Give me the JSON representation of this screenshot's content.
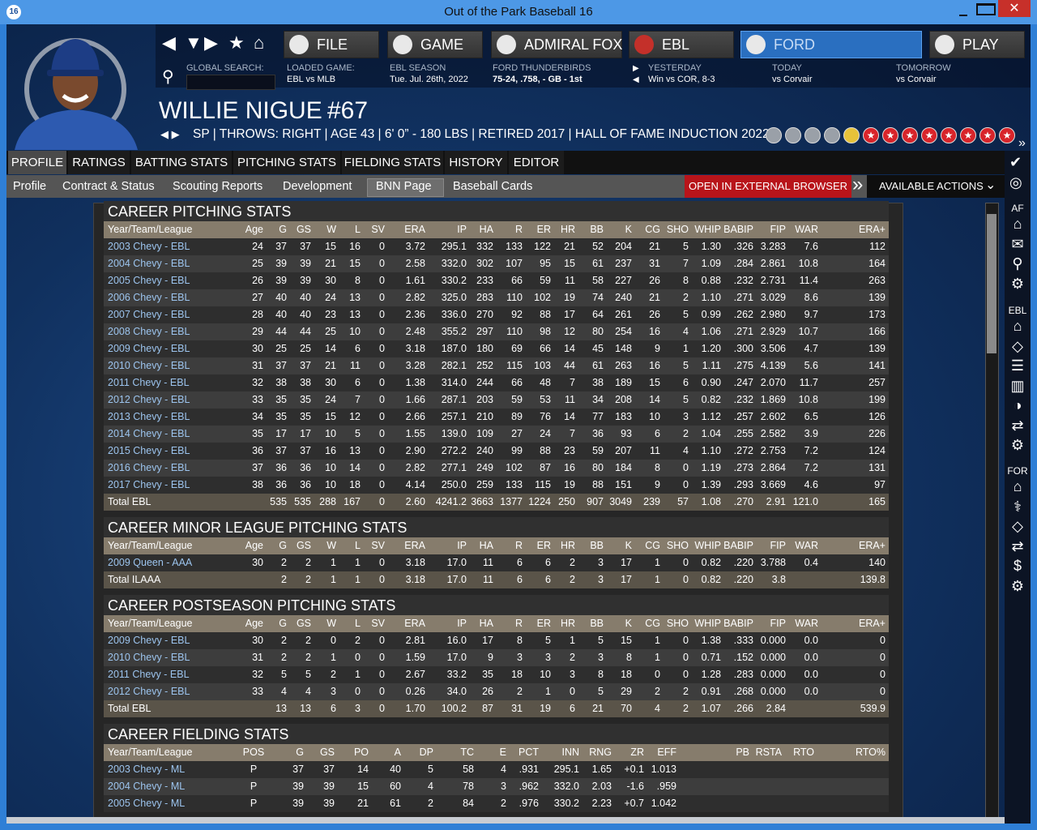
{
  "window": {
    "title": "Out of the Park Baseball 16"
  },
  "nav": [
    "FILE",
    "GAME",
    "ADMIRAL FOX",
    "EBL",
    "FORD",
    "PLAY"
  ],
  "info": [
    {
      "label": "GLOBAL SEARCH:"
    },
    {
      "label": "LOADED GAME:",
      "value": "EBL vs MLB"
    },
    {
      "label": "EBL SEASON",
      "value": "Tue. Jul. 26th, 2022"
    },
    {
      "label": "FORD THUNDERBIRDS",
      "value": "75-24, .758, - GB - 1st"
    },
    {
      "label": "YESTERDAY",
      "value": "Win vs COR, 8-3"
    },
    {
      "label": "TODAY",
      "value": "vs Corvair"
    },
    {
      "label": "TOMORROW",
      "value": "vs Corvair"
    }
  ],
  "player": {
    "name": "WILLIE NIGUE",
    "number": "#67",
    "details": "SP | THROWS: RIGHT  |  AGE 43  |  6' 0” - 180 LBS  |  RETIRED 2017  |  HALL OF FAME INDUCTION 2022  |"
  },
  "tabs": [
    "PROFILE",
    "RATINGS",
    "BATTING STATS",
    "PITCHING STATS",
    "FIELDING STATS",
    "HISTORY",
    "EDITOR"
  ],
  "subtabs": [
    "Profile",
    "Contract & Status",
    "Scouting Reports",
    "Development",
    "BNN Page",
    "Baseball Cards"
  ],
  "actions": [
    "OPEN IN EXTERNAL BROWSER",
    "AVAILABLE ACTIONS"
  ],
  "sidebar": [
    "AF",
    "EBL",
    "FOR"
  ],
  "sections": [
    {
      "title": "CAREER PITCHING STATS",
      "columns": [
        "Year/Team/League",
        "Age",
        "G",
        "GS",
        "W",
        "L",
        "SV",
        "ERA",
        "IP",
        "HA",
        "R",
        "ER",
        "HR",
        "BB",
        "K",
        "CG",
        "SHO",
        "WHIP",
        "BABIP",
        "FIP",
        "WAR",
        "ERA+"
      ],
      "rows": [
        [
          "2003 Chevy - EBL",
          "24",
          "37",
          "37",
          "15",
          "16",
          "0",
          "3.72",
          "295.1",
          "332",
          "133",
          "122",
          "21",
          "52",
          "204",
          "21",
          "5",
          "1.30",
          ".326",
          "3.283",
          "7.6",
          "112"
        ],
        [
          "2004 Chevy - EBL",
          "25",
          "39",
          "39",
          "21",
          "15",
          "0",
          "2.58",
          "332.0",
          "302",
          "107",
          "95",
          "15",
          "61",
          "237",
          "31",
          "7",
          "1.09",
          ".284",
          "2.861",
          "10.8",
          "164"
        ],
        [
          "2005 Chevy - EBL",
          "26",
          "39",
          "39",
          "30",
          "8",
          "0",
          "1.61",
          "330.2",
          "233",
          "66",
          "59",
          "11",
          "58",
          "227",
          "26",
          "8",
          "0.88",
          ".232",
          "2.731",
          "11.4",
          "263"
        ],
        [
          "2006 Chevy - EBL",
          "27",
          "40",
          "40",
          "24",
          "13",
          "0",
          "2.82",
          "325.0",
          "283",
          "110",
          "102",
          "19",
          "74",
          "240",
          "21",
          "2",
          "1.10",
          ".271",
          "3.029",
          "8.6",
          "139"
        ],
        [
          "2007 Chevy - EBL",
          "28",
          "40",
          "40",
          "23",
          "13",
          "0",
          "2.36",
          "336.0",
          "270",
          "92",
          "88",
          "17",
          "64",
          "261",
          "26",
          "5",
          "0.99",
          ".262",
          "2.980",
          "9.7",
          "173"
        ],
        [
          "2008 Chevy - EBL",
          "29",
          "44",
          "44",
          "25",
          "10",
          "0",
          "2.48",
          "355.2",
          "297",
          "110",
          "98",
          "12",
          "80",
          "254",
          "16",
          "4",
          "1.06",
          ".271",
          "2.929",
          "10.7",
          "166"
        ],
        [
          "2009 Chevy - EBL",
          "30",
          "25",
          "25",
          "14",
          "6",
          "0",
          "3.18",
          "187.0",
          "180",
          "69",
          "66",
          "14",
          "45",
          "148",
          "9",
          "1",
          "1.20",
          ".300",
          "3.506",
          "4.7",
          "139"
        ],
        [
          "2010 Chevy - EBL",
          "31",
          "37",
          "37",
          "21",
          "11",
          "0",
          "3.28",
          "282.1",
          "252",
          "115",
          "103",
          "44",
          "61",
          "263",
          "16",
          "5",
          "1.11",
          ".275",
          "4.139",
          "5.6",
          "141"
        ],
        [
          "2011 Chevy - EBL",
          "32",
          "38",
          "38",
          "30",
          "6",
          "0",
          "1.38",
          "314.0",
          "244",
          "66",
          "48",
          "7",
          "38",
          "189",
          "15",
          "6",
          "0.90",
          ".247",
          "2.070",
          "11.7",
          "257"
        ],
        [
          "2012 Chevy - EBL",
          "33",
          "35",
          "35",
          "24",
          "7",
          "0",
          "1.66",
          "287.1",
          "203",
          "59",
          "53",
          "11",
          "34",
          "208",
          "14",
          "5",
          "0.82",
          ".232",
          "1.869",
          "10.8",
          "199"
        ],
        [
          "2013 Chevy - EBL",
          "34",
          "35",
          "35",
          "15",
          "12",
          "0",
          "2.66",
          "257.1",
          "210",
          "89",
          "76",
          "14",
          "77",
          "183",
          "10",
          "3",
          "1.12",
          ".257",
          "2.602",
          "6.5",
          "126"
        ],
        [
          "2014 Chevy - EBL",
          "35",
          "17",
          "17",
          "10",
          "5",
          "0",
          "1.55",
          "139.0",
          "109",
          "27",
          "24",
          "7",
          "36",
          "93",
          "6",
          "2",
          "1.04",
          ".255",
          "2.582",
          "3.9",
          "226"
        ],
        [
          "2015 Chevy - EBL",
          "36",
          "37",
          "37",
          "16",
          "13",
          "0",
          "2.90",
          "272.2",
          "240",
          "99",
          "88",
          "23",
          "59",
          "207",
          "11",
          "4",
          "1.10",
          ".272",
          "2.753",
          "7.2",
          "124"
        ],
        [
          "2016 Chevy - EBL",
          "37",
          "36",
          "36",
          "10",
          "14",
          "0",
          "2.82",
          "277.1",
          "249",
          "102",
          "87",
          "16",
          "80",
          "184",
          "8",
          "0",
          "1.19",
          ".273",
          "2.864",
          "7.2",
          "131"
        ],
        [
          "2017 Chevy - EBL",
          "38",
          "36",
          "36",
          "10",
          "18",
          "0",
          "4.14",
          "250.0",
          "259",
          "133",
          "115",
          "19",
          "88",
          "151",
          "9",
          "0",
          "1.39",
          ".293",
          "3.669",
          "4.6",
          "97"
        ]
      ],
      "total": [
        "Total EBL",
        null,
        "535",
        "535",
        "288",
        "167",
        "0",
        "2.60",
        "4241.2",
        "3663",
        "1377",
        "1224",
        "250",
        "907",
        "3049",
        "239",
        "57",
        "1.08",
        ".270",
        "2.91",
        "121.0",
        "165"
      ]
    },
    {
      "title": "CAREER MINOR LEAGUE PITCHING STATS",
      "columns": [
        "Year/Team/League",
        "Age",
        "G",
        "GS",
        "W",
        "L",
        "SV",
        "ERA",
        "IP",
        "HA",
        "R",
        "ER",
        "HR",
        "BB",
        "K",
        "CG",
        "SHO",
        "WHIP",
        "BABIP",
        "FIP",
        "WAR",
        "ERA+"
      ],
      "rows": [
        [
          "2009 Queen - AAA",
          "30",
          "2",
          "2",
          "1",
          "1",
          "0",
          "3.18",
          "17.0",
          "11",
          "6",
          "6",
          "2",
          "3",
          "17",
          "1",
          "0",
          "0.82",
          ".220",
          "3.788",
          "0.4",
          "140"
        ]
      ],
      "total": [
        "Total ILAAA",
        null,
        "2",
        "2",
        "1",
        "1",
        "0",
        "3.18",
        "17.0",
        "11",
        "6",
        "6",
        "2",
        "3",
        "17",
        "1",
        "0",
        "0.82",
        ".220",
        "3.8",
        null,
        "139.8"
      ]
    },
    {
      "title": "CAREER POSTSEASON PITCHING STATS",
      "columns": [
        "Year/Team/League",
        "Age",
        "G",
        "GS",
        "W",
        "L",
        "SV",
        "ERA",
        "IP",
        "HA",
        "R",
        "ER",
        "HR",
        "BB",
        "K",
        "CG",
        "SHO",
        "WHIP",
        "BABIP",
        "FIP",
        "WAR",
        "ERA+"
      ],
      "rows": [
        [
          "2009 Chevy - EBL",
          "30",
          "2",
          "2",
          "0",
          "2",
          "0",
          "2.81",
          "16.0",
          "17",
          "8",
          "5",
          "1",
          "5",
          "15",
          "1",
          "0",
          "1.38",
          ".333",
          "0.000",
          "0.0",
          "0"
        ],
        [
          "2010 Chevy - EBL",
          "31",
          "2",
          "2",
          "1",
          "0",
          "0",
          "1.59",
          "17.0",
          "9",
          "3",
          "3",
          "2",
          "3",
          "8",
          "1",
          "0",
          "0.71",
          ".152",
          "0.000",
          "0.0",
          "0"
        ],
        [
          "2011 Chevy - EBL",
          "32",
          "5",
          "5",
          "2",
          "1",
          "0",
          "2.67",
          "33.2",
          "35",
          "18",
          "10",
          "3",
          "8",
          "18",
          "0",
          "0",
          "1.28",
          ".283",
          "0.000",
          "0.0",
          "0"
        ],
        [
          "2012 Chevy - EBL",
          "33",
          "4",
          "4",
          "3",
          "0",
          "0",
          "0.26",
          "34.0",
          "26",
          "2",
          "1",
          "0",
          "5",
          "29",
          "2",
          "2",
          "0.91",
          ".268",
          "0.000",
          "0.0",
          "0"
        ]
      ],
      "total": [
        "Total EBL",
        null,
        "13",
        "13",
        "6",
        "3",
        "0",
        "1.70",
        "100.2",
        "87",
        "31",
        "19",
        "6",
        "21",
        "70",
        "4",
        "2",
        "1.07",
        ".266",
        "2.84",
        null,
        "539.9"
      ]
    },
    {
      "title": "CAREER FIELDING STATS",
      "columns": [
        "Year/Team/League",
        "POS",
        "G",
        "GS",
        "PO",
        "A",
        "DP",
        "TC",
        "E",
        "PCT",
        "INN",
        "RNG",
        "ZR",
        "EFF",
        "PB",
        "RSTA",
        "RTO",
        "RTO%"
      ],
      "rows": [
        [
          "2003 Chevy - ML",
          "P",
          "37",
          "37",
          "14",
          "40",
          "5",
          "58",
          "4",
          ".931",
          "295.1",
          "1.65",
          "+0.1",
          "1.013",
          null,
          null,
          null,
          null
        ],
        [
          "2004 Chevy - ML",
          "P",
          "39",
          "39",
          "15",
          "60",
          "4",
          "78",
          "3",
          ".962",
          "332.0",
          "2.03",
          "-1.6",
          ".959",
          null,
          null,
          null,
          null
        ],
        [
          "2005 Chevy - ML",
          "P",
          "39",
          "39",
          "21",
          "61",
          "2",
          "84",
          "2",
          ".976",
          "330.2",
          "2.23",
          "+0.7",
          "1.042",
          null,
          null,
          null,
          null
        ]
      ]
    }
  ]
}
